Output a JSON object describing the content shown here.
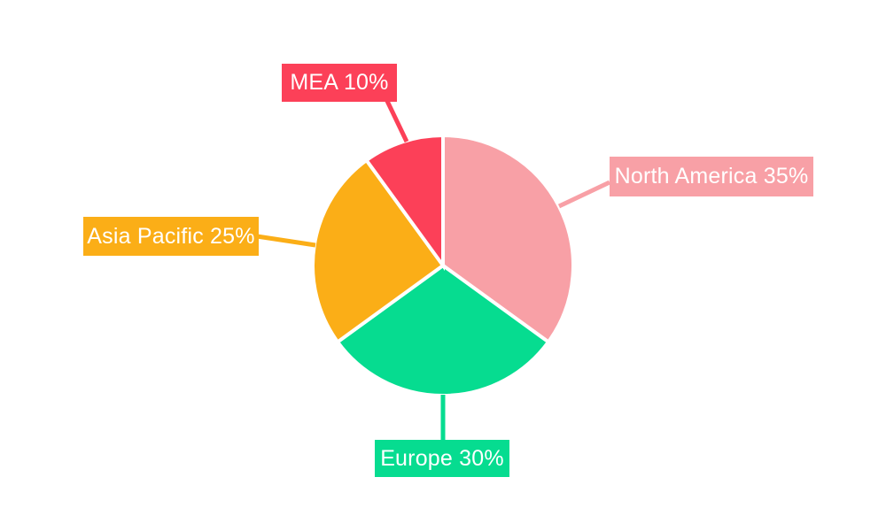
{
  "background_color": "#FFFFFF",
  "chart_data": {
    "type": "pie",
    "title": "",
    "labels": [
      "North America",
      "Europe",
      "Asia Pacific",
      "MEA"
    ],
    "values": [
      35,
      30,
      25,
      10
    ],
    "unit": "%",
    "colors": [
      "#F8A0A6",
      "#06DC90",
      "#FBAE17",
      "#FC4058"
    ],
    "labels_display": [
      "North America 35%",
      "Europe 30%",
      "Asia Pacific 25%",
      "MEA 10%"
    ],
    "label_text_color": "#FFFFFF",
    "start_angle_deg": 0,
    "direction": "clockwise",
    "legend_position": "callout-labels",
    "grid": false
  }
}
